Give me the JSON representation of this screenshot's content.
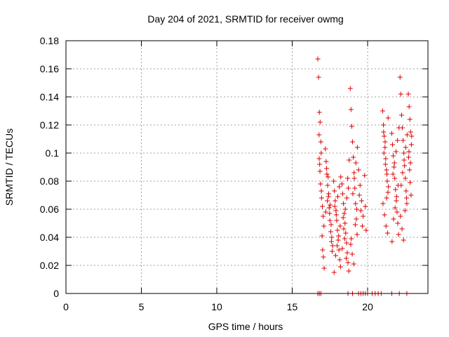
{
  "chart_data": {
    "type": "scatter",
    "title": "Day 204 of 2021, SRMTID for receiver owmg",
    "xlabel": "GPS time / hours",
    "ylabel": "SRMTID / TECUs",
    "xlim": [
      0,
      24
    ],
    "ylim": [
      0,
      0.18
    ],
    "xticks": [
      0,
      5,
      10,
      15,
      20
    ],
    "xtick_labels": [
      "0",
      "5",
      "10",
      "15",
      "20"
    ],
    "yticks": [
      0,
      0.02,
      0.04,
      0.06,
      0.08,
      0.1,
      0.12,
      0.14,
      0.16,
      0.18
    ],
    "ytick_labels": [
      "0",
      "0.02",
      "0.04",
      "0.06",
      "0.08",
      "0.1",
      "0.12",
      "0.14",
      "0.16",
      "0.18"
    ],
    "grid": true,
    "series": [
      {
        "name": "SRMTID",
        "color": "#dd0000",
        "marker": "plus",
        "x": [
          16.7,
          16.75,
          16.8,
          16.85,
          16.9,
          16.92,
          16.78,
          16.82,
          16.88,
          16.95,
          17.0,
          17.05,
          17.1,
          16.98,
          17.02,
          16.84,
          16.79,
          16.93,
          17.07,
          17.12,
          17.2,
          17.25,
          17.3,
          17.35,
          17.4,
          17.45,
          17.5,
          17.55,
          17.6,
          17.65,
          17.22,
          17.33,
          17.42,
          17.58,
          17.62,
          17.48,
          17.38,
          17.28,
          17.52,
          17.68,
          17.75,
          17.8,
          17.85,
          17.9,
          17.95,
          18.0,
          18.05,
          18.1,
          18.15,
          18.2,
          17.78,
          17.88,
          17.98,
          18.08,
          18.18,
          17.82,
          17.92,
          18.02,
          18.12,
          18.22,
          18.3,
          18.35,
          18.4,
          18.45,
          18.5,
          18.55,
          18.6,
          18.65,
          18.7,
          18.75,
          18.32,
          18.42,
          18.52,
          18.62,
          18.72,
          18.38,
          18.48,
          18.58,
          18.68,
          18.78,
          18.85,
          18.9,
          18.95,
          19.0,
          19.05,
          19.1,
          19.15,
          19.2,
          19.25,
          19.3,
          18.88,
          18.98,
          19.08,
          19.18,
          19.28,
          19.02,
          19.12,
          19.22,
          19.32,
          18.92,
          19.4,
          19.5,
          19.6,
          19.7,
          19.8,
          19.9,
          19.45,
          19.55,
          19.65,
          19.85,
          21.0,
          21.05,
          21.1,
          21.15,
          21.2,
          21.25,
          21.3,
          21.35,
          21.02,
          21.12,
          21.22,
          21.32,
          21.08,
          21.18,
          21.28,
          21.38,
          21.06,
          21.16,
          21.26,
          21.36,
          21.6,
          21.65,
          21.7,
          21.75,
          21.8,
          21.85,
          21.9,
          21.95,
          22.0,
          22.05,
          21.62,
          21.72,
          21.82,
          21.92,
          22.02,
          21.68,
          21.78,
          21.88,
          21.98,
          22.08,
          22.15,
          22.2,
          22.25,
          22.3,
          22.35,
          22.4,
          22.45,
          22.5,
          22.55,
          22.6,
          22.18,
          22.28,
          22.38,
          22.48,
          22.58,
          22.22,
          22.32,
          22.42,
          22.52,
          22.62,
          22.7,
          22.75,
          22.8,
          22.85,
          22.9,
          22.72,
          22.78,
          22.82,
          22.88,
          22.92,
          22.74,
          22.84,
          16.7,
          16.8,
          16.9,
          18.7,
          19.0,
          19.4,
          19.55,
          19.7,
          19.85,
          20.0,
          20.3,
          20.5,
          20.7,
          20.9,
          21.6,
          22.1,
          22.6
        ],
        "y": [
          0.167,
          0.154,
          0.129,
          0.122,
          0.108,
          0.1,
          0.113,
          0.092,
          0.078,
          0.068,
          0.062,
          0.055,
          0.048,
          0.041,
          0.031,
          0.087,
          0.096,
          0.073,
          0.026,
          0.018,
          0.103,
          0.094,
          0.085,
          0.077,
          0.069,
          0.061,
          0.052,
          0.044,
          0.037,
          0.03,
          0.058,
          0.066,
          0.071,
          0.049,
          0.04,
          0.057,
          0.083,
          0.089,
          0.063,
          0.034,
          0.08,
          0.073,
          0.066,
          0.059,
          0.052,
          0.045,
          0.038,
          0.031,
          0.024,
          0.019,
          0.015,
          0.027,
          0.034,
          0.041,
          0.048,
          0.062,
          0.056,
          0.069,
          0.076,
          0.083,
          0.078,
          0.071,
          0.064,
          0.057,
          0.05,
          0.043,
          0.036,
          0.029,
          0.022,
          0.016,
          0.032,
          0.046,
          0.06,
          0.068,
          0.075,
          0.054,
          0.039,
          0.025,
          0.082,
          0.095,
          0.146,
          0.131,
          0.119,
          0.108,
          0.097,
          0.086,
          0.075,
          0.064,
          0.053,
          0.042,
          0.035,
          0.028,
          0.021,
          0.049,
          0.06,
          0.071,
          0.082,
          0.093,
          0.104,
          0.039,
          0.088,
          0.077,
          0.066,
          0.055,
          0.084,
          0.045,
          0.07,
          0.059,
          0.048,
          0.062,
          0.13,
          0.12,
          0.112,
          0.104,
          0.096,
          0.088,
          0.08,
          0.072,
          0.064,
          0.056,
          0.048,
          0.043,
          0.1,
          0.092,
          0.085,
          0.076,
          0.115,
          0.108,
          0.068,
          0.125,
          0.114,
          0.106,
          0.098,
          0.09,
          0.082,
          0.074,
          0.066,
          0.058,
          0.05,
          0.042,
          0.037,
          0.053,
          0.061,
          0.069,
          0.077,
          0.085,
          0.093,
          0.101,
          0.109,
          0.118,
          0.154,
          0.142,
          0.127,
          0.118,
          0.109,
          0.1,
          0.091,
          0.082,
          0.073,
          0.064,
          0.055,
          0.046,
          0.038,
          0.059,
          0.068,
          0.077,
          0.086,
          0.095,
          0.104,
          0.113,
          0.142,
          0.133,
          0.124,
          0.115,
          0.106,
          0.097,
          0.088,
          0.079,
          0.07,
          0.112,
          0.101,
          0.093,
          0.0,
          0.0,
          0.0,
          0.0,
          0.0,
          0.0,
          0.0,
          0.0,
          0.0,
          0.0,
          0.0,
          0.0,
          0.0,
          0.0,
          0.0,
          0.0,
          0.0
        ]
      }
    ]
  }
}
